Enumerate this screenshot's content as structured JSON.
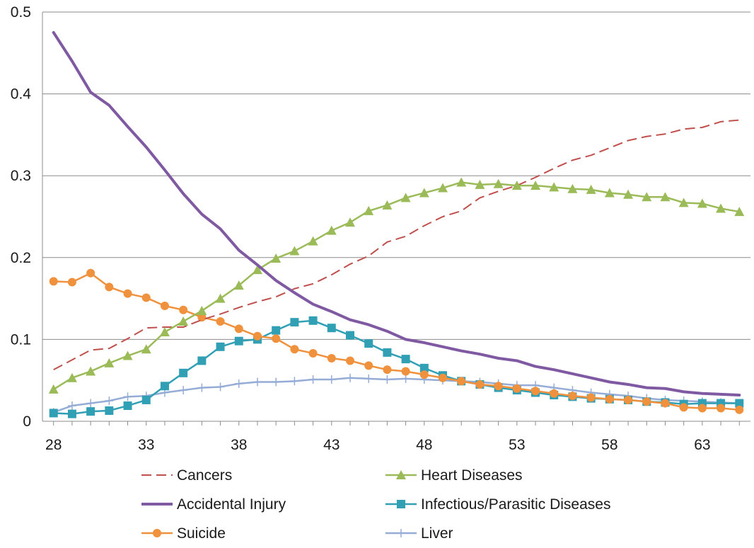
{
  "chart_data": {
    "type": "line",
    "title": "",
    "xlabel": "",
    "ylabel": "",
    "xlim": [
      27.4,
      65.6
    ],
    "ylim": [
      0,
      0.5
    ],
    "grid": true,
    "legend_position": "bottom",
    "x_ticks": [
      28,
      33,
      38,
      43,
      48,
      53,
      58,
      63
    ],
    "y_ticks": [
      0,
      0.1,
      0.2,
      0.3,
      0.4,
      0.5
    ],
    "y_tick_labels": [
      "0",
      "0.1",
      "0.2",
      "0.3",
      "0.4",
      "0.5"
    ],
    "x": [
      28,
      29,
      30,
      31,
      32,
      33,
      34,
      35,
      36,
      37,
      38,
      39,
      40,
      41,
      42,
      43,
      44,
      45,
      46,
      47,
      48,
      49,
      50,
      51,
      52,
      53,
      54,
      55,
      56,
      57,
      58,
      59,
      60,
      61,
      62,
      63,
      64,
      65
    ],
    "series": [
      {
        "name": "Cancers",
        "color": "#c0504d",
        "style": "dashed",
        "marker": "none",
        "values": [
          0.063,
          0.075,
          0.087,
          0.089,
          0.101,
          0.114,
          0.115,
          0.115,
          0.124,
          0.131,
          0.139,
          0.146,
          0.152,
          0.162,
          0.168,
          0.179,
          0.192,
          0.202,
          0.219,
          0.226,
          0.239,
          0.25,
          0.257,
          0.273,
          0.281,
          0.288,
          0.298,
          0.309,
          0.319,
          0.325,
          0.334,
          0.343,
          0.348,
          0.351,
          0.357,
          0.359,
          0.366,
          0.368
        ]
      },
      {
        "name": "Heart Diseases",
        "color": "#9bbb59",
        "style": "solid",
        "marker": "triangle",
        "values": [
          0.039,
          0.053,
          0.061,
          0.071,
          0.08,
          0.088,
          0.109,
          0.122,
          0.135,
          0.15,
          0.166,
          0.185,
          0.199,
          0.208,
          0.22,
          0.233,
          0.243,
          0.257,
          0.264,
          0.273,
          0.279,
          0.285,
          0.292,
          0.289,
          0.29,
          0.288,
          0.288,
          0.286,
          0.284,
          0.283,
          0.279,
          0.277,
          0.274,
          0.274,
          0.267,
          0.266,
          0.26,
          0.256
        ]
      },
      {
        "name": "Accidental Injury",
        "color": "#7f5aa2",
        "style": "solid",
        "marker": "none",
        "values": [
          0.475,
          0.44,
          0.402,
          0.386,
          0.36,
          0.335,
          0.307,
          0.278,
          0.253,
          0.235,
          0.209,
          0.191,
          0.172,
          0.157,
          0.143,
          0.134,
          0.124,
          0.118,
          0.11,
          0.1,
          0.096,
          0.091,
          0.086,
          0.082,
          0.077,
          0.074,
          0.067,
          0.063,
          0.058,
          0.053,
          0.048,
          0.045,
          0.041,
          0.04,
          0.036,
          0.034,
          0.033,
          0.032
        ]
      },
      {
        "name": "Infectious/Parasitic Diseases",
        "color": "#31a0b5",
        "style": "solid",
        "marker": "square",
        "values": [
          0.01,
          0.009,
          0.012,
          0.013,
          0.019,
          0.026,
          0.043,
          0.059,
          0.074,
          0.091,
          0.098,
          0.1,
          0.111,
          0.121,
          0.123,
          0.114,
          0.105,
          0.095,
          0.084,
          0.076,
          0.065,
          0.056,
          0.049,
          0.045,
          0.041,
          0.038,
          0.035,
          0.032,
          0.03,
          0.028,
          0.027,
          0.026,
          0.024,
          0.023,
          0.021,
          0.022,
          0.022,
          0.022
        ]
      },
      {
        "name": "Suicide",
        "color": "#f0913d",
        "style": "solid",
        "marker": "circle",
        "values": [
          0.171,
          0.17,
          0.181,
          0.164,
          0.156,
          0.151,
          0.141,
          0.136,
          0.127,
          0.122,
          0.113,
          0.104,
          0.101,
          0.088,
          0.083,
          0.077,
          0.074,
          0.068,
          0.063,
          0.061,
          0.057,
          0.053,
          0.049,
          0.045,
          0.043,
          0.04,
          0.037,
          0.034,
          0.031,
          0.029,
          0.027,
          0.026,
          0.024,
          0.022,
          0.017,
          0.016,
          0.016,
          0.014
        ]
      },
      {
        "name": "Liver",
        "color": "#95acd6",
        "style": "solid",
        "marker": "plus",
        "values": [
          0.011,
          0.019,
          0.022,
          0.025,
          0.03,
          0.031,
          0.035,
          0.038,
          0.041,
          0.042,
          0.046,
          0.048,
          0.048,
          0.049,
          0.051,
          0.051,
          0.053,
          0.052,
          0.051,
          0.052,
          0.051,
          0.05,
          0.049,
          0.048,
          0.046,
          0.044,
          0.044,
          0.041,
          0.038,
          0.035,
          0.033,
          0.031,
          0.028,
          0.026,
          0.025,
          0.024,
          0.023,
          0.022
        ]
      }
    ]
  }
}
